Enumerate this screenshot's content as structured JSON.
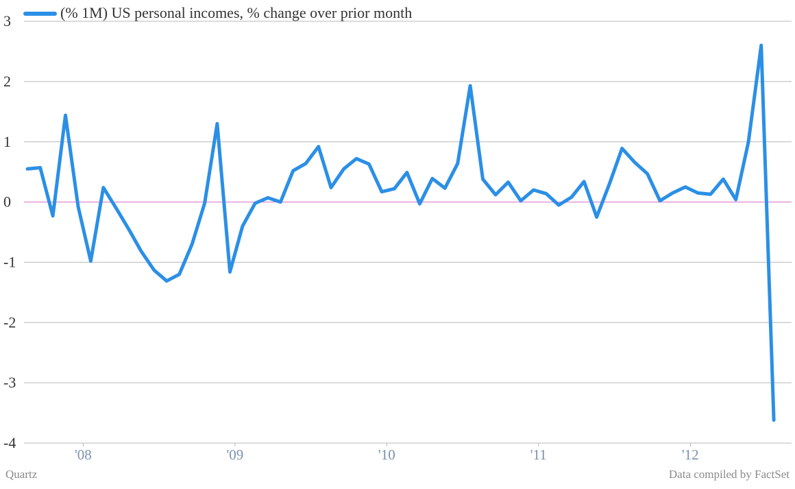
{
  "chart_data": {
    "type": "line",
    "legend": "(% 1M) US personal incomes, % change over prior month",
    "source_left": "Quartz",
    "source_right": "Data compiled by FactSet",
    "x": [
      2008.083,
      2008.167,
      2008.25,
      2008.333,
      2008.417,
      2008.5,
      2008.583,
      2008.667,
      2008.75,
      2008.833,
      2008.917,
      2009,
      2009.083,
      2009.167,
      2009.25,
      2009.333,
      2009.417,
      2009.5,
      2009.583,
      2009.667,
      2009.75,
      2009.833,
      2009.917,
      2010,
      2010.083,
      2010.167,
      2010.25,
      2010.333,
      2010.417,
      2010.5,
      2010.583,
      2010.667,
      2010.75,
      2010.833,
      2010.917,
      2011,
      2011.083,
      2011.167,
      2011.25,
      2011.333,
      2011.417,
      2011.5,
      2011.583,
      2011.667,
      2011.75,
      2011.833,
      2011.917,
      2012,
      2012.083,
      2012.167,
      2012.25,
      2012.333,
      2012.417,
      2012.5,
      2012.583,
      2012.667,
      2012.75,
      2012.833,
      2012.917,
      2013
    ],
    "series": [
      {
        "name": "(% 1M) US personal incomes, % change over prior month",
        "color": "#2b8fe6",
        "values": [
          0.55,
          0.57,
          -0.23,
          1.44,
          -0.08,
          -0.98,
          0.24,
          -0.1,
          -0.45,
          -0.82,
          -1.13,
          -1.31,
          -1.2,
          -0.7,
          -0.02,
          1.3,
          -1.16,
          -0.4,
          -0.02,
          0.07,
          0.0,
          0.52,
          0.64,
          0.92,
          0.24,
          0.55,
          0.72,
          0.63,
          0.17,
          0.22,
          0.49,
          -0.03,
          0.39,
          0.23,
          0.64,
          1.93,
          0.38,
          0.12,
          0.33,
          0.02,
          0.2,
          0.14,
          -0.05,
          0.08,
          0.34,
          -0.25,
          0.3,
          0.89,
          0.66,
          0.47,
          0.02,
          0.15,
          0.25,
          0.15,
          0.13,
          0.38,
          0.04,
          1.0,
          2.6,
          -3.62
        ]
      }
    ],
    "xlim": [
      2008.06,
      2013.117
    ],
    "xticks": [
      {
        "value": 2008.45,
        "label": "'08"
      },
      {
        "value": 2009.45,
        "label": "'09"
      },
      {
        "value": 2010.45,
        "label": "'10"
      },
      {
        "value": 2011.45,
        "label": "'11"
      },
      {
        "value": 2012.45,
        "label": "'12"
      }
    ],
    "ylim": [
      -4,
      3
    ],
    "yticks": [
      -4,
      -3,
      -2,
      -1,
      0,
      1,
      2,
      3
    ],
    "grid": true,
    "grid_color": "#b8b8b8",
    "zero_line_color": "#d66fc4"
  }
}
